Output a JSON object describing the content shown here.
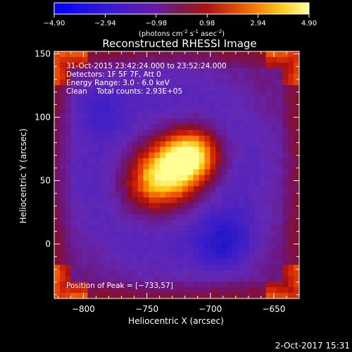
{
  "colorbar": {
    "ticks": [
      "-4.90",
      "-2.94",
      "-0.98",
      "0.98",
      "2.94",
      "4.90"
    ],
    "range": [
      -4.9,
      4.9
    ],
    "unit_label": {
      "base": "(photons cm",
      "sup1": "-2",
      "mid1": " s",
      "sup2": "-1",
      "mid2": " asec",
      "sup3": "-2",
      "end": ")"
    }
  },
  "chart_data": {
    "type": "heatmap",
    "title": "Reconstructed RHESSI Image",
    "xlabel": "Heliocentric X (arcsec)",
    "ylabel": "Heliocentric Y (arcsec)",
    "xlim": [
      -823,
      -630
    ],
    "ylim": [
      -43,
      152
    ],
    "xticks": [
      -800,
      -750,
      -700,
      -650
    ],
    "xtick_labels": [
      "−800",
      "−750",
      "−700",
      "−650"
    ],
    "yticks": [
      0,
      50,
      100,
      150
    ],
    "ytick_labels": [
      "0",
      "50",
      "100",
      "150"
    ],
    "peak": [
      -733,
      57
    ],
    "grid": false,
    "annotations": {
      "line1": "31-Oct-2015 23:42:24.000 to 23:52:24.000",
      "line2": "Detectors: 1F 5F 7F, Att 0",
      "line3": "Energy Range: 3.0 - 6.0 keV",
      "line4": "Clean    Total counts: 2.93E+05",
      "peak_label": "Position of Peak = [−733,57]"
    }
  },
  "footer": {
    "timestamp": "2-Oct-2017 15:31"
  }
}
